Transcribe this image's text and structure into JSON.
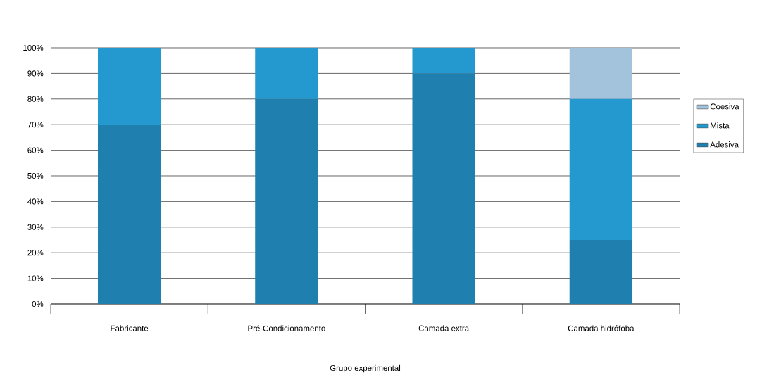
{
  "chart_data": {
    "type": "bar",
    "stacked": true,
    "xlabel": "Grupo experimental",
    "categories": [
      "Fabricante",
      "Pré-Condicionamento",
      "Camada extra",
      "Camada hidrófoba"
    ],
    "series": [
      {
        "name": "Adesiva",
        "color": "#1f7fae",
        "values": [
          70,
          80,
          90,
          25
        ]
      },
      {
        "name": "Mista",
        "color": "#2399cf",
        "values": [
          30,
          20,
          10,
          55
        ]
      },
      {
        "name": "Coesiva",
        "color": "#a3c3dc",
        "values": [
          0,
          0,
          0,
          20
        ]
      }
    ],
    "ylim": [
      0,
      100
    ],
    "yticks": [
      {
        "value": 0,
        "label": "0%"
      },
      {
        "value": 10,
        "label": "10%"
      },
      {
        "value": 20,
        "label": "20%"
      },
      {
        "value": 30,
        "label": "30%"
      },
      {
        "value": 40,
        "label": "40%"
      },
      {
        "value": 50,
        "label": "50%"
      },
      {
        "value": 60,
        "label": "60%"
      },
      {
        "value": 70,
        "label": "70%"
      },
      {
        "value": 80,
        "label": "80%"
      },
      {
        "value": 90,
        "label": "90%"
      },
      {
        "value": 100,
        "label": "100%"
      }
    ],
    "grid": "y",
    "legend": "right"
  }
}
